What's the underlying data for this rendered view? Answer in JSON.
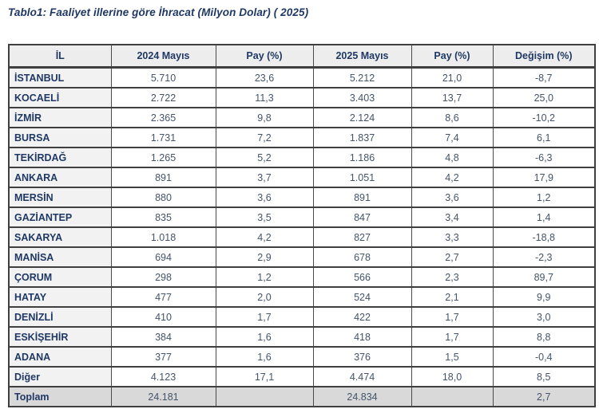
{
  "title": "Tablo1: Faaliyet illerine göre İhracat (Milyon Dolar) ( 2025)",
  "table": {
    "columns": [
      "İL",
      "2024 Mayıs",
      "Pay (%)",
      "2025 Mayıs",
      "Pay (%)",
      "Değişim (%)"
    ],
    "rows": [
      {
        "il": "İSTANBUL",
        "v2024": "5.710",
        "pay2024": "23,6",
        "v2025": "5.212",
        "pay2025": "21,0",
        "degisim": "-8,7",
        "total": false
      },
      {
        "il": "KOCAELİ",
        "v2024": "2.722",
        "pay2024": "11,3",
        "v2025": "3.403",
        "pay2025": "13,7",
        "degisim": "25,0",
        "total": false
      },
      {
        "il": "İZMİR",
        "v2024": "2.365",
        "pay2024": "9,8",
        "v2025": "2.124",
        "pay2025": "8,6",
        "degisim": "-10,2",
        "total": false
      },
      {
        "il": "BURSA",
        "v2024": "1.731",
        "pay2024": "7,2",
        "v2025": "1.837",
        "pay2025": "7,4",
        "degisim": "6,1",
        "total": false
      },
      {
        "il": "TEKİRDAĞ",
        "v2024": "1.265",
        "pay2024": "5,2",
        "v2025": "1.186",
        "pay2025": "4,8",
        "degisim": "-6,3",
        "total": false
      },
      {
        "il": "ANKARA",
        "v2024": "891",
        "pay2024": "3,7",
        "v2025": "1.051",
        "pay2025": "4,2",
        "degisim": "17,9",
        "total": false
      },
      {
        "il": "MERSİN",
        "v2024": "880",
        "pay2024": "3,6",
        "v2025": "891",
        "pay2025": "3,6",
        "degisim": "1,2",
        "total": false
      },
      {
        "il": "GAZİANTEP",
        "v2024": "835",
        "pay2024": "3,5",
        "v2025": "847",
        "pay2025": "3,4",
        "degisim": "1,4",
        "total": false
      },
      {
        "il": "SAKARYA",
        "v2024": "1.018",
        "pay2024": "4,2",
        "v2025": "827",
        "pay2025": "3,3",
        "degisim": "-18,8",
        "total": false
      },
      {
        "il": "MANİSA",
        "v2024": "694",
        "pay2024": "2,9",
        "v2025": "678",
        "pay2025": "2,7",
        "degisim": "-2,3",
        "total": false
      },
      {
        "il": "ÇORUM",
        "v2024": "298",
        "pay2024": "1,2",
        "v2025": "566",
        "pay2025": "2,3",
        "degisim": "89,7",
        "total": false
      },
      {
        "il": "HATAY",
        "v2024": "477",
        "pay2024": "2,0",
        "v2025": "524",
        "pay2025": "2,1",
        "degisim": "9,9",
        "total": false
      },
      {
        "il": "DENİZLİ",
        "v2024": "410",
        "pay2024": "1,7",
        "v2025": "422",
        "pay2025": "1,7",
        "degisim": "3,0",
        "total": false
      },
      {
        "il": "ESKİŞEHİR",
        "v2024": "384",
        "pay2024": "1,6",
        "v2025": "418",
        "pay2025": "1,7",
        "degisim": "8,8",
        "total": false
      },
      {
        "il": "ADANA",
        "v2024": "377",
        "pay2024": "1,6",
        "v2025": "376",
        "pay2025": "1,5",
        "degisim": "-0,4",
        "total": false
      },
      {
        "il": "Diğer",
        "v2024": "4.123",
        "pay2024": "17,1",
        "v2025": "4.474",
        "pay2025": "18,0",
        "degisim": "8,5",
        "total": false
      },
      {
        "il": "Toplam",
        "v2024": "24.181",
        "pay2024": "",
        "v2025": "24.834",
        "pay2025": "",
        "degisim": "2,7",
        "total": true
      }
    ]
  },
  "colors": {
    "title_text": "#1f3864",
    "header_bg": "#ededed",
    "header_text": "#1f3864",
    "il_column_bg": "#f2f2f2",
    "number_text": "#44546a",
    "total_row_bg": "#d9d9d9",
    "border": "#3f3f3f"
  }
}
